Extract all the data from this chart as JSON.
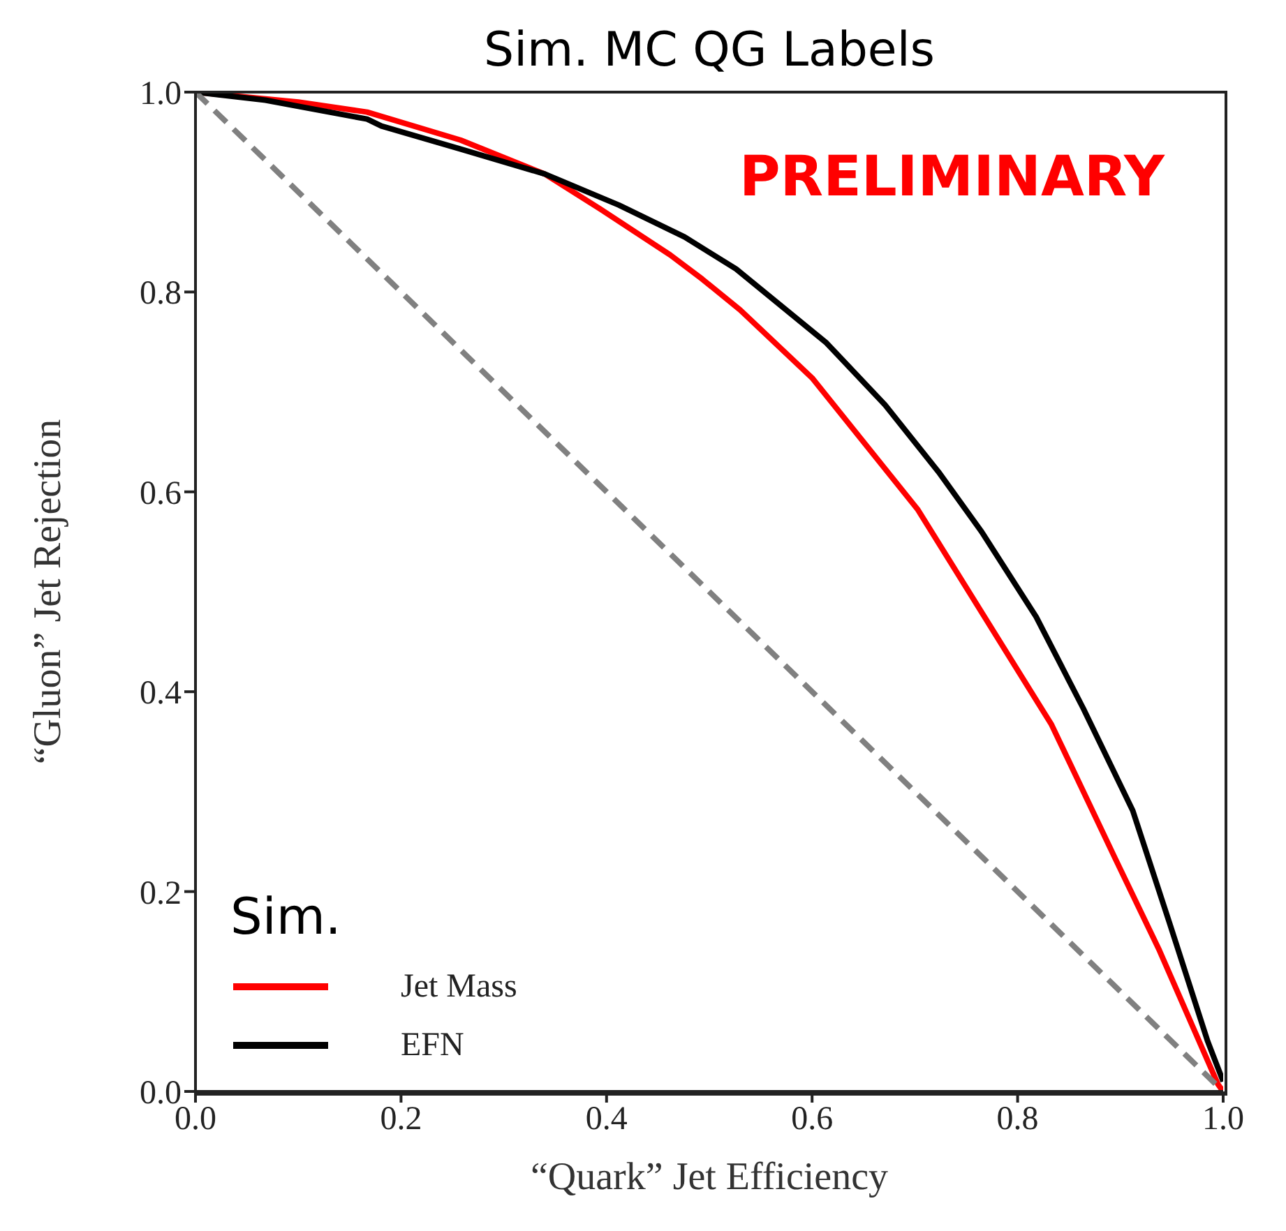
{
  "chart_data": {
    "type": "line",
    "title": "Sim. MC QG Labels",
    "xlabel": "“Quark” Jet Efficiency",
    "ylabel": "“Gluon” Jet Rejection",
    "legend_title": "Sim.",
    "annotations": [
      "PRELIMINARY"
    ],
    "xlim": [
      0,
      1
    ],
    "ylim": [
      0,
      1
    ],
    "xticks": [
      {
        "value": 0,
        "label": "0.0"
      },
      {
        "value": 0.2,
        "label": "0.2"
      },
      {
        "value": 0.4,
        "label": "0.4"
      },
      {
        "value": 0.6,
        "label": "0.6"
      },
      {
        "value": 0.8,
        "label": "0.8"
      },
      {
        "value": 1,
        "label": "1.0"
      }
    ],
    "yticks": [
      {
        "value": 0,
        "label": "0.0"
      },
      {
        "value": 0.2,
        "label": "0.2"
      },
      {
        "value": 0.4,
        "label": "0.4"
      },
      {
        "value": 0.6,
        "label": "0.6"
      },
      {
        "value": 0.8,
        "label": "0.8"
      },
      {
        "value": 1,
        "label": "1.0"
      }
    ],
    "legend": "bottom left",
    "marker": "none",
    "series": [
      {
        "name": "Jet Mass",
        "color": "#ff0000",
        "line_style": "solid",
        "x": [
          0,
          0.1,
          0.167,
          0.258,
          0.34,
          0.394,
          0.462,
          0.493,
          0.53,
          0.6,
          0.703,
          0.833,
          0.895,
          0.938,
          0.995,
          1
        ],
        "values": [
          1,
          0.99,
          0.98,
          0.952,
          0.918,
          0.883,
          0.837,
          0.813,
          0.782,
          0.714,
          0.582,
          0.367,
          0.233,
          0.141,
          0.007,
          0
        ]
      },
      {
        "name": "EFN",
        "color": "#000000",
        "line_style": "solid",
        "x": [
          0,
          0.068,
          0.167,
          0.181,
          0.258,
          0.34,
          0.412,
          0.476,
          0.526,
          0.614,
          0.671,
          0.723,
          0.765,
          0.818,
          0.864,
          0.912,
          0.948,
          0.985,
          1
        ],
        "values": [
          1,
          0.992,
          0.973,
          0.966,
          0.943,
          0.918,
          0.887,
          0.855,
          0.823,
          0.749,
          0.687,
          0.62,
          0.56,
          0.475,
          0.383,
          0.281,
          0.168,
          0.05,
          0.01
        ]
      },
      {
        "color": "#808080",
        "line_style": "dashed",
        "x": [
          0,
          1
        ],
        "values": [
          1,
          0
        ]
      }
    ]
  }
}
